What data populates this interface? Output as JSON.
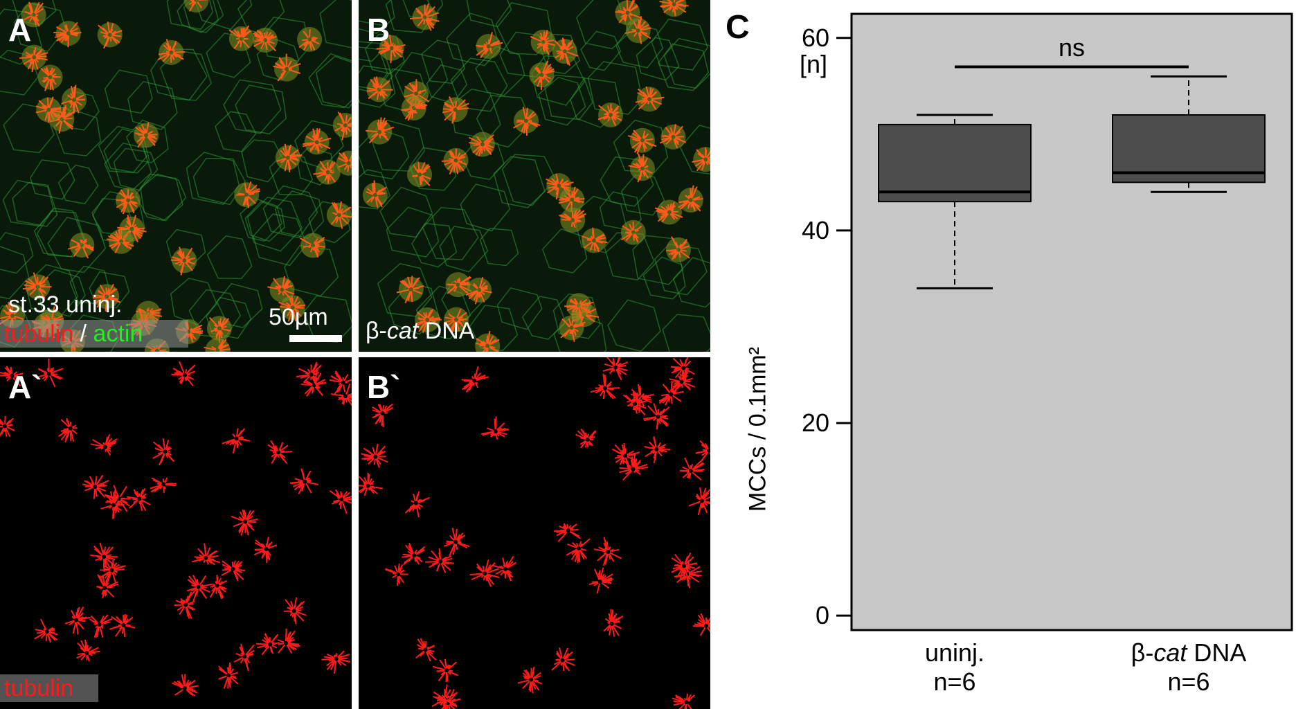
{
  "panels": {
    "A": {
      "label": "A",
      "caption": "st.33 uninj.",
      "legend": {
        "part1": "tubulin",
        "sep": " / ",
        "part2": "actin"
      },
      "scalebar": "50µm"
    },
    "B": {
      "label": "B",
      "caption_prefix": "β-",
      "caption_italic": "cat",
      "caption_suffix": " DNA"
    },
    "A2": {
      "label": "A`",
      "legend": "tubulin"
    },
    "B2": {
      "label": "B`"
    }
  },
  "chart": {
    "label": "C",
    "ylabel": "MCCs / 0.1mm²",
    "yunit": "[n]",
    "significance": "ns",
    "categories": [
      {
        "name_prefix": "",
        "name_italic": "",
        "name_suffix": "uninj.",
        "n": "n=6"
      },
      {
        "name_prefix": "β-",
        "name_italic": "cat",
        "name_suffix": " DNA",
        "n": "n=6"
      }
    ],
    "colors": {
      "background": "#c8c8c8",
      "box": "#4d4d4d"
    }
  },
  "chart_data": {
    "type": "box",
    "categories": [
      "uninj.",
      "β-cat DNA"
    ],
    "series": [
      {
        "values": [
          {
            "min": 34,
            "q1": 43,
            "median": 44,
            "q3": 51,
            "max": 52
          },
          {
            "min": 44,
            "q1": 45,
            "median": 46,
            "q3": 52,
            "max": 56
          }
        ]
      }
    ],
    "ylim": [
      -1.5,
      62.5
    ],
    "yticks": [
      0,
      20,
      40,
      60
    ],
    "ylabel": "MCCs / 0.1mm²",
    "annotations": [
      {
        "text": "ns",
        "between": [
          "uninj.",
          "β-cat DNA"
        ],
        "y": 57
      }
    ],
    "grid": false
  }
}
